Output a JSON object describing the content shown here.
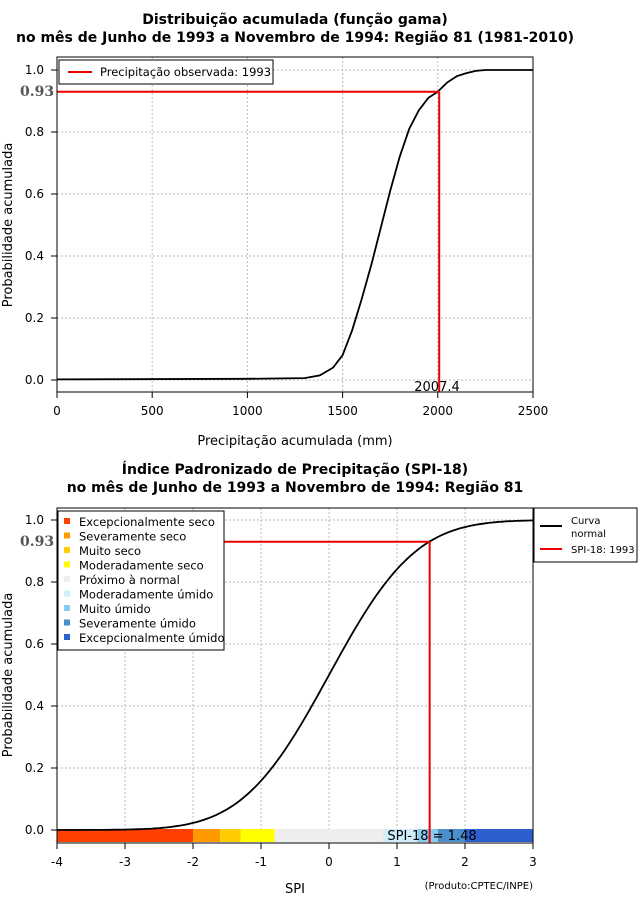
{
  "chart_data": [
    {
      "type": "line",
      "title": "Distribuição acumulada (função gama)",
      "subtitle": "no mês de Junho de 1993 a Novembro de 1994: Região 81 (1981-2010)",
      "xlabel": "Precipitação acumulada (mm)",
      "ylabel": "Probabilidade acumulada",
      "xlim": [
        0,
        2500
      ],
      "ylim": [
        0,
        1
      ],
      "x_ticks": [
        "0",
        "500",
        "1000",
        "1500",
        "2000",
        "2500"
      ],
      "y_ticks": [
        "0.0",
        "0.2",
        "0.4",
        "0.6",
        "0.8",
        "1.0"
      ],
      "grid": true,
      "legend": {
        "position": "top-left",
        "entries": [
          "Precipitação observada: 1993"
        ]
      },
      "series": [
        {
          "name": "CDF gama",
          "x": [
            0,
            1000,
            1300,
            1380,
            1450,
            1500,
            1550,
            1600,
            1650,
            1700,
            1750,
            1800,
            1850,
            1900,
            1950,
            2000,
            2050,
            2100,
            2150,
            2200,
            2250,
            2500
          ],
          "y": [
            0.002,
            0.004,
            0.006,
            0.015,
            0.04,
            0.08,
            0.16,
            0.26,
            0.37,
            0.49,
            0.61,
            0.72,
            0.81,
            0.87,
            0.91,
            0.93,
            0.96,
            0.98,
            0.99,
            0.997,
            1.0,
            1.0
          ]
        }
      ],
      "observed": {
        "x": 2007.4,
        "y": 0.93,
        "x_label": "2007.4",
        "y_label": "0.93"
      }
    },
    {
      "type": "line",
      "title": "Índice Padronizado de Precipitação (SPI-18)",
      "subtitle": "no mês de Junho de 1993 a Novembro de 1994: Região 81",
      "xlabel": "SPI",
      "ylabel": "Probabilidade acumulada",
      "xlim": [
        -4,
        3
      ],
      "ylim": [
        0,
        1
      ],
      "x_ticks": [
        "-4",
        "-3",
        "-2",
        "-1",
        "0",
        "1",
        "2",
        "3"
      ],
      "y_ticks": [
        "0.0",
        "0.2",
        "0.4",
        "0.6",
        "0.8",
        "1.0"
      ],
      "grid": true,
      "legend_classes": {
        "position": "top-left",
        "entries": [
          {
            "label": "Excepcionalmente seco",
            "color": "#ff4000"
          },
          {
            "label": "Severamente seco",
            "color": "#ff9900"
          },
          {
            "label": "Muito seco",
            "color": "#ffcc00"
          },
          {
            "label": "Moderadamente seco",
            "color": "#ffff00"
          },
          {
            "label": "Próximo à normal",
            "color": "#eeeeee"
          },
          {
            "label": "Moderadamente úmido",
            "color": "#cfeefa"
          },
          {
            "label": "Muito úmido",
            "color": "#88ccee"
          },
          {
            "label": "Severamente úmido",
            "color": "#4a8fcc"
          },
          {
            "label": "Excepcionalmente úmido",
            "color": "#2d5fcf"
          }
        ]
      },
      "legend_lines": {
        "position": "top-right",
        "entries": [
          {
            "label1": "Curva",
            "label2": "normal",
            "color": "#000000"
          },
          {
            "label1": "SPI-18: 1993",
            "label2": "",
            "color": "#ee0000"
          }
        ]
      },
      "class_bands": [
        {
          "from": -4,
          "to": -2,
          "color": "#ff4000"
        },
        {
          "from": -2,
          "to": -1.6,
          "color": "#ff9900"
        },
        {
          "from": -1.6,
          "to": -1.3,
          "color": "#ffcc00"
        },
        {
          "from": -1.3,
          "to": -0.8,
          "color": "#ffff00"
        },
        {
          "from": -0.8,
          "to": 0.8,
          "color": "#eeeeee"
        },
        {
          "from": 0.8,
          "to": 1.3,
          "color": "#cfeefa"
        },
        {
          "from": 1.3,
          "to": 1.6,
          "color": "#88ccee"
        },
        {
          "from": 1.6,
          "to": 2.0,
          "color": "#4a8fcc"
        },
        {
          "from": 2.0,
          "to": 3,
          "color": "#2d5fcf"
        }
      ],
      "observed": {
        "x": 1.48,
        "y": 0.93,
        "x_label": "SPI-18 = 1.48",
        "y_label": "0.93"
      },
      "footer": "(Produto:CPTEC/INPE)"
    }
  ]
}
